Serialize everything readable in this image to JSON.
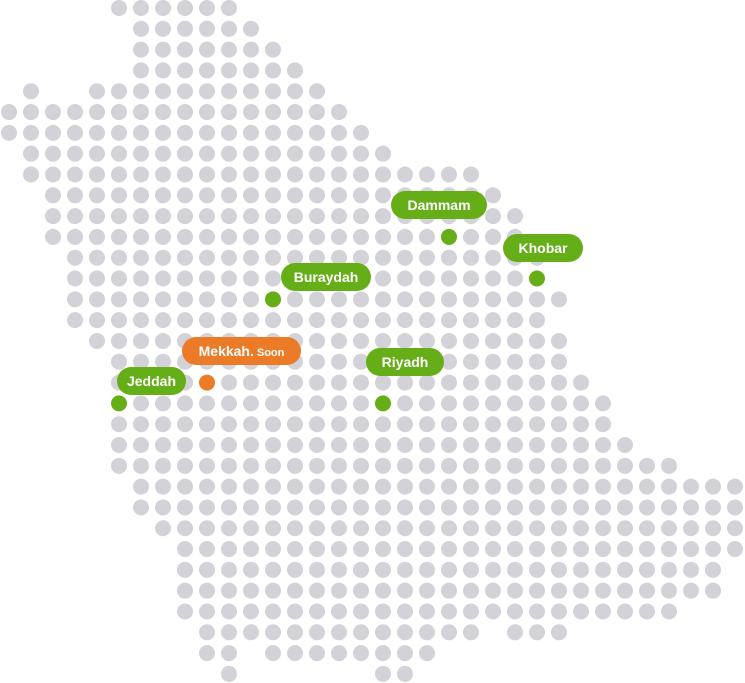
{
  "colors": {
    "dot": "#d3d2d8",
    "active": "#66ae18",
    "soon": "#ec7b28",
    "label_text": "#ffffff"
  },
  "grid": {
    "rows": [
      [
        [
          5,
          10
        ]
      ],
      [
        [
          6,
          11
        ]
      ],
      [
        [
          6,
          12
        ]
      ],
      [
        [
          6,
          13
        ]
      ],
      [
        [
          1,
          1
        ],
        [
          4,
          14
        ]
      ],
      [
        [
          0,
          15
        ]
      ],
      [
        [
          0,
          16
        ]
      ],
      [
        [
          1,
          17
        ]
      ],
      [
        [
          1,
          21
        ]
      ],
      [
        [
          2,
          22
        ]
      ],
      [
        [
          2,
          23
        ]
      ],
      [
        [
          2,
          23
        ]
      ],
      [
        [
          3,
          24
        ]
      ],
      [
        [
          3,
          24
        ]
      ],
      [
        [
          3,
          25
        ]
      ],
      [
        [
          3,
          24
        ]
      ],
      [
        [
          4,
          25
        ]
      ],
      [
        [
          5,
          25
        ]
      ],
      [
        [
          5,
          26
        ]
      ],
      [
        [
          5,
          27
        ]
      ],
      [
        [
          5,
          27
        ]
      ],
      [
        [
          5,
          28
        ]
      ],
      [
        [
          5,
          30
        ]
      ],
      [
        [
          6,
          33
        ]
      ],
      [
        [
          6,
          33
        ]
      ],
      [
        [
          7,
          33
        ]
      ],
      [
        [
          8,
          33
        ]
      ],
      [
        [
          8,
          32
        ]
      ],
      [
        [
          8,
          32
        ]
      ],
      [
        [
          8,
          30
        ]
      ],
      [
        [
          9,
          21
        ],
        [
          23,
          25
        ]
      ],
      [
        [
          9,
          10
        ],
        [
          12,
          19
        ]
      ],
      [
        [
          10,
          10
        ],
        [
          17,
          18
        ]
      ]
    ]
  },
  "cities": [
    {
      "name": "Dammam",
      "status": "active",
      "col": 20,
      "row": 11
    },
    {
      "name": "Khobar",
      "status": "active",
      "col": 24,
      "row": 13
    },
    {
      "name": "Buraydah",
      "status": "active",
      "col": 12,
      "row": 14
    },
    {
      "name": "Mekkah.",
      "suffix": "Soon",
      "status": "soon",
      "col": 9,
      "row": 18
    },
    {
      "name": "Riyadh",
      "status": "active",
      "col": 17,
      "row": 19
    },
    {
      "name": "Jeddah",
      "status": "active",
      "col": 5,
      "row": 19
    }
  ]
}
